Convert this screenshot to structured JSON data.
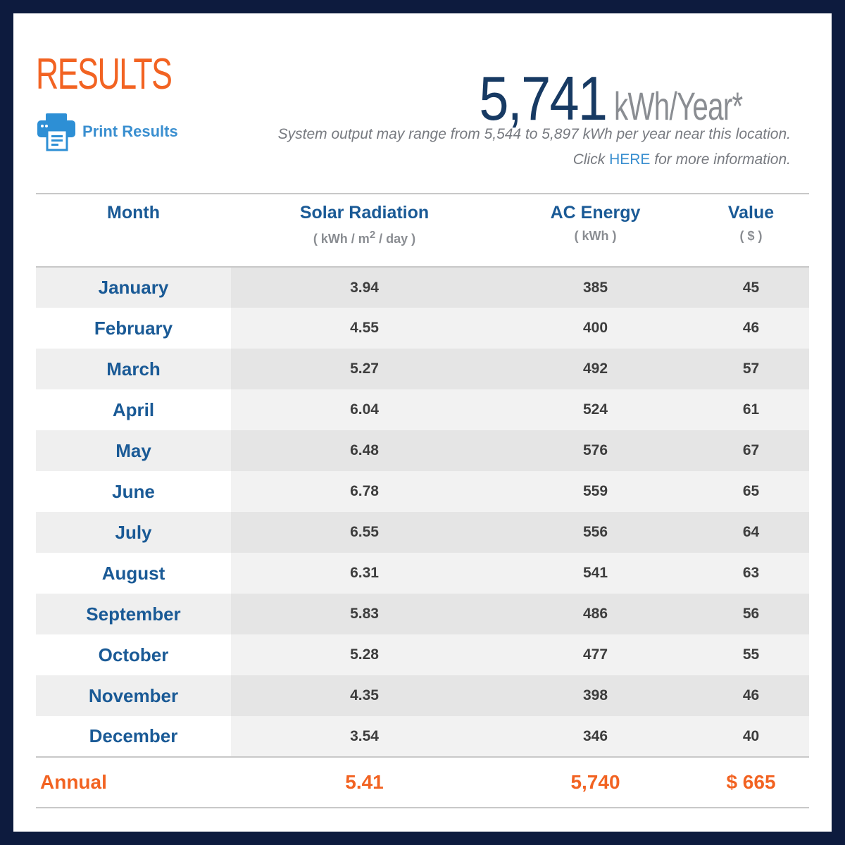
{
  "header": {
    "title": "RESULTS",
    "print_label": "Print Results",
    "annual_output": "5,741",
    "annual_output_unit": "kWh/Year*",
    "range_text": "System output may range from 5,544 to 5,897 kWh per year near this location.",
    "info_prefix": "Click ",
    "info_link": "HERE",
    "info_suffix": " for more information."
  },
  "table": {
    "columns": [
      {
        "label": "Month",
        "unit": ""
      },
      {
        "label": "Solar Radiation",
        "unit_pre": "( kWh / m",
        "unit_sup": "2",
        "unit_post": " / day )"
      },
      {
        "label": "AC Energy",
        "unit": "( kWh )"
      },
      {
        "label": "Value",
        "unit": "( $ )"
      }
    ],
    "rows": [
      {
        "month": "January",
        "solar": "3.94",
        "ac": "385",
        "value": "45"
      },
      {
        "month": "February",
        "solar": "4.55",
        "ac": "400",
        "value": "46"
      },
      {
        "month": "March",
        "solar": "5.27",
        "ac": "492",
        "value": "57"
      },
      {
        "month": "April",
        "solar": "6.04",
        "ac": "524",
        "value": "61"
      },
      {
        "month": "May",
        "solar": "6.48",
        "ac": "576",
        "value": "67"
      },
      {
        "month": "June",
        "solar": "6.78",
        "ac": "559",
        "value": "65"
      },
      {
        "month": "July",
        "solar": "6.55",
        "ac": "556",
        "value": "64"
      },
      {
        "month": "August",
        "solar": "6.31",
        "ac": "541",
        "value": "63"
      },
      {
        "month": "September",
        "solar": "5.83",
        "ac": "486",
        "value": "56"
      },
      {
        "month": "October",
        "solar": "5.28",
        "ac": "477",
        "value": "55"
      },
      {
        "month": "November",
        "solar": "4.35",
        "ac": "398",
        "value": "46"
      },
      {
        "month": "December",
        "solar": "3.54",
        "ac": "346",
        "value": "40"
      }
    ],
    "annual": {
      "label": "Annual",
      "solar": "5.41",
      "ac": "5,740",
      "value": "$ 665"
    }
  },
  "colors": {
    "accent_orange": "#f26322",
    "heading_blue": "#1a5a96",
    "link_blue": "#3a8fd0",
    "frame_navy": "#0d1b3e"
  },
  "icons": {
    "print": "printer-icon"
  }
}
